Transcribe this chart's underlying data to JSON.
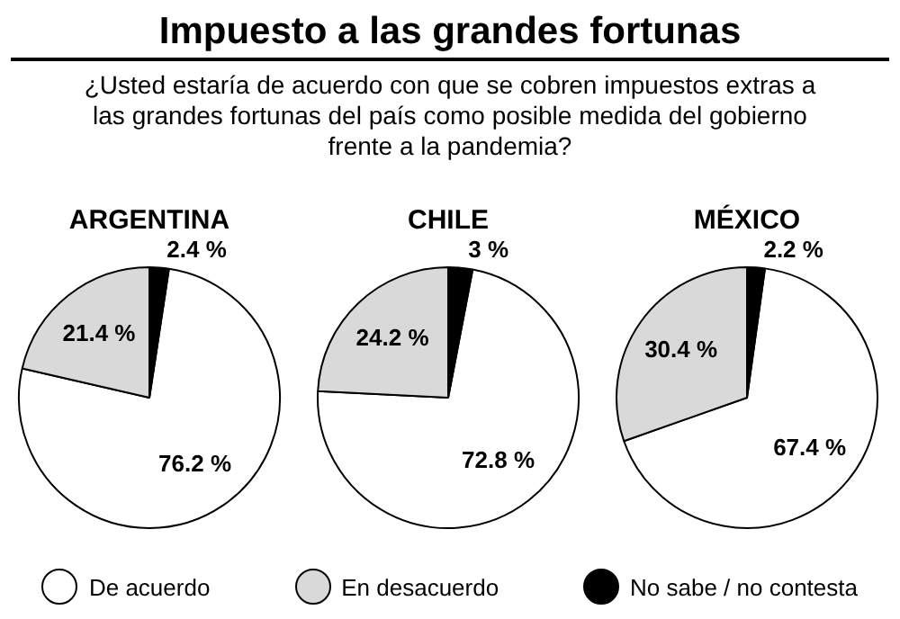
{
  "chart_data": [
    {
      "type": "pie",
      "title": "ARGENTINA",
      "annotations": [
        "Impuesto a las grandes fortunas",
        "¿Usted estaría de acuerdo con que se cobren impuestos extras a las grandes fortunas del país como posible medida del gobierno frente a la pandemia?"
      ],
      "categories": [
        "De acuerdo",
        "En desacuerdo",
        "No sabe / no contesta"
      ],
      "values": [
        76.2,
        21.4,
        2.4
      ],
      "value_labels": [
        "76.2 %",
        "21.4 %",
        "2.4 %"
      ],
      "colors": [
        "#ffffff",
        "#d9d9d9",
        "#000000"
      ],
      "legend": "bottom"
    },
    {
      "type": "pie",
      "title": "CHILE",
      "values": [
        72.8,
        24.2,
        3
      ],
      "value_labels": [
        "72.8 %",
        "24.2 %",
        "3 %"
      ],
      "colors": [
        "#ffffff",
        "#d9d9d9",
        "#000000"
      ]
    },
    {
      "type": "pie",
      "title": "MÉXICO",
      "values": [
        67.4,
        30.4,
        2.2
      ],
      "value_labels": [
        "67.4 %",
        "30.4 %",
        "2.2 %"
      ],
      "colors": [
        "#ffffff",
        "#d9d9d9",
        "#000000"
      ]
    }
  ]
}
